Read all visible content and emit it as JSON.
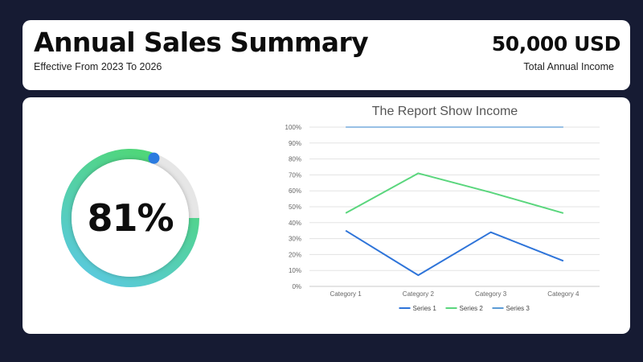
{
  "header": {
    "title": "Annual Sales Summary",
    "subtitle": "Effective From 2023 To 2026",
    "income_amount": "50,000 USD",
    "income_label": "Total Annual Income"
  },
  "gauge": {
    "value_label": "81%",
    "value": 0.81,
    "colors": {
      "start": "#5bc8e8",
      "end": "#4fd67a",
      "knob": "#2b7be0",
      "track": "#e6e6e6"
    }
  },
  "chart_data": {
    "type": "line",
    "title": "The Report Show Income",
    "categories": [
      "Category 1",
      "Category 2",
      "Category 3",
      "Category 4"
    ],
    "yticks": [
      "0%",
      "10%",
      "20%",
      "30%",
      "40%",
      "50%",
      "60%",
      "70%",
      "80%",
      "90%",
      "100%"
    ],
    "ylim": [
      0,
      100
    ],
    "grid": true,
    "legend_position": "bottom",
    "series": [
      {
        "name": "Series 1",
        "values": [
          35,
          7,
          34,
          16
        ],
        "color": "#2e74d9"
      },
      {
        "name": "Series 2",
        "values": [
          46,
          71,
          59,
          46
        ],
        "color": "#5ad67d"
      },
      {
        "name": "Series 3",
        "values": [
          100,
          100,
          100,
          100
        ],
        "color": "#5b9bd5"
      }
    ]
  }
}
